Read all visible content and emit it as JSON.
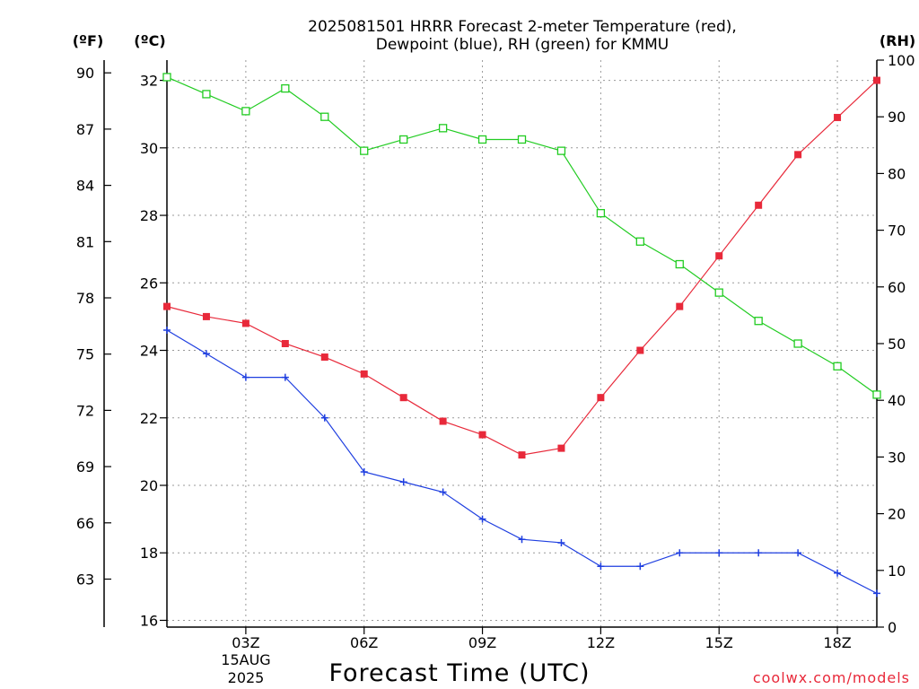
{
  "chart_data": {
    "type": "line",
    "title_lines": [
      "2025081501 HRRR Forecast 2-meter Temperature (red),",
      "Dewpoint (blue), RH (green) for KMMU"
    ],
    "xlabel": "Forecast Time (UTC)",
    "date_label_lines": [
      "15AUG",
      "2025"
    ],
    "credit": "coolwx.com/models",
    "left_unit_f": "(ºF)",
    "left_unit_c": "(ºC)",
    "right_unit": "(RH)",
    "x_hours": [
      1,
      2,
      3,
      4,
      5,
      6,
      7,
      8,
      9,
      10,
      11,
      12,
      13,
      14,
      15,
      16,
      17,
      18,
      19
    ],
    "xlim": [
      1,
      19
    ],
    "x_ticks": [
      {
        "hour": 3,
        "label": "03Z"
      },
      {
        "hour": 6,
        "label": "06Z"
      },
      {
        "hour": 9,
        "label": "09Z"
      },
      {
        "hour": 12,
        "label": "12Z"
      },
      {
        "hour": 15,
        "label": "15Z"
      },
      {
        "hour": 18,
        "label": "18Z"
      }
    ],
    "ylim_c": [
      15.8,
      32.6
    ],
    "y_ticks_c": [
      "16",
      "18",
      "20",
      "22",
      "24",
      "26",
      "28",
      "30",
      "32"
    ],
    "y_ticks_f": [
      "63",
      "66",
      "69",
      "72",
      "75",
      "78",
      "81",
      "84",
      "87",
      "90"
    ],
    "ylim_rh": [
      0,
      100
    ],
    "y_ticks_rh": [
      "0",
      "10",
      "20",
      "30",
      "40",
      "50",
      "60",
      "70",
      "80",
      "90",
      "100"
    ],
    "grid": true,
    "series": [
      {
        "name": "Temperature",
        "axis": "celsius",
        "color": "#e8293a",
        "marker": "filled-square",
        "values": [
          25.3,
          25.0,
          24.8,
          24.2,
          23.8,
          23.3,
          22.6,
          21.9,
          21.5,
          20.9,
          21.1,
          22.6,
          24.0,
          25.3,
          26.8,
          28.3,
          29.8,
          30.9,
          32.0
        ]
      },
      {
        "name": "Dewpoint",
        "axis": "celsius",
        "color": "#1f3fe0",
        "marker": "plus",
        "values": [
          24.6,
          23.9,
          23.2,
          23.2,
          22.0,
          20.4,
          20.1,
          19.8,
          19.0,
          18.4,
          18.3,
          17.6,
          17.6,
          18.0,
          18.0,
          18.0,
          18.0,
          17.4,
          16.8
        ]
      },
      {
        "name": "RH",
        "axis": "rh",
        "color": "#22cc22",
        "marker": "open-square",
        "values": [
          97,
          94,
          91,
          95,
          90,
          84,
          86,
          88,
          86,
          86,
          84,
          73,
          68,
          64,
          59,
          54,
          50,
          46,
          41
        ]
      }
    ]
  }
}
